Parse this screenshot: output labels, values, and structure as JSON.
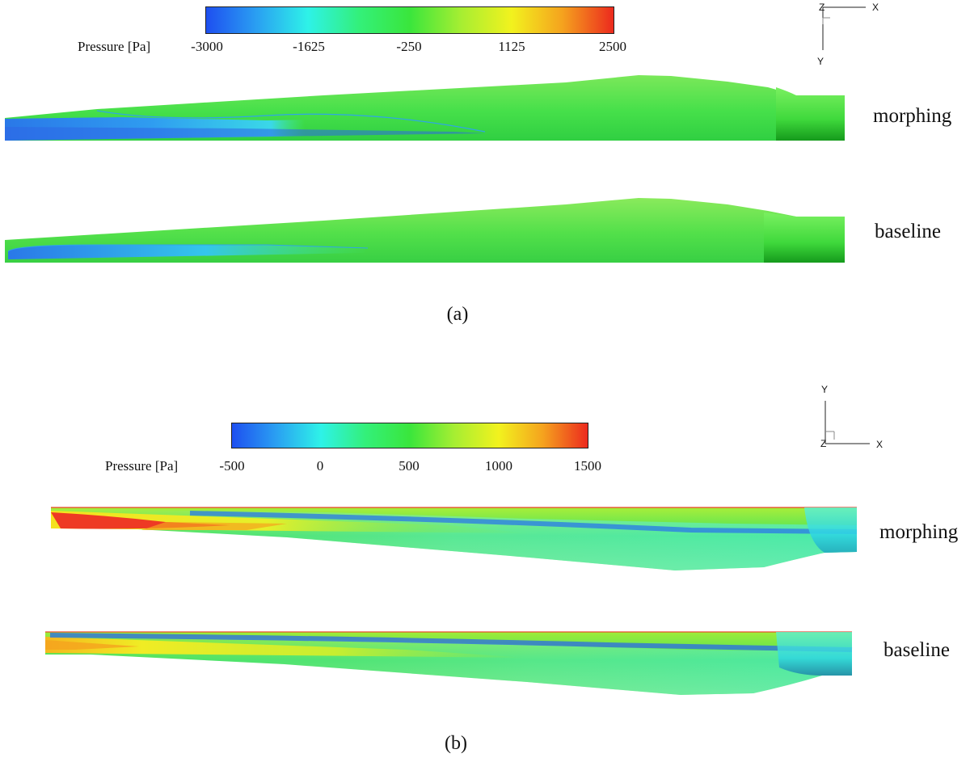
{
  "panel_a": {
    "colorbar": {
      "title": "Pressure [Pa]",
      "ticks": [
        "-3000",
        "-1625",
        "-250",
        "1125",
        "2500"
      ],
      "range": [
        -3000,
        2500
      ]
    },
    "triad": {
      "labels": [
        "Z",
        "X",
        "Y"
      ]
    },
    "blades": [
      {
        "label": "morphing"
      },
      {
        "label": "baseline"
      }
    ],
    "caption": "(a)"
  },
  "panel_b": {
    "colorbar": {
      "title": "Pressure [Pa]",
      "ticks": [
        "-500",
        "0",
        "500",
        "1000",
        "1500"
      ],
      "range": [
        -500,
        1500
      ]
    },
    "triad": {
      "labels": [
        "Y",
        "Z",
        "X"
      ]
    },
    "blades": [
      {
        "label": "morphing"
      },
      {
        "label": "baseline"
      }
    ],
    "caption": "(b)"
  },
  "colormap": [
    "#1e4ff0",
    "#2aa0f2",
    "#2ef2e8",
    "#33f07a",
    "#3ae63c",
    "#a6ee32",
    "#f2f21e",
    "#f5a21e",
    "#ec2a1e"
  ]
}
